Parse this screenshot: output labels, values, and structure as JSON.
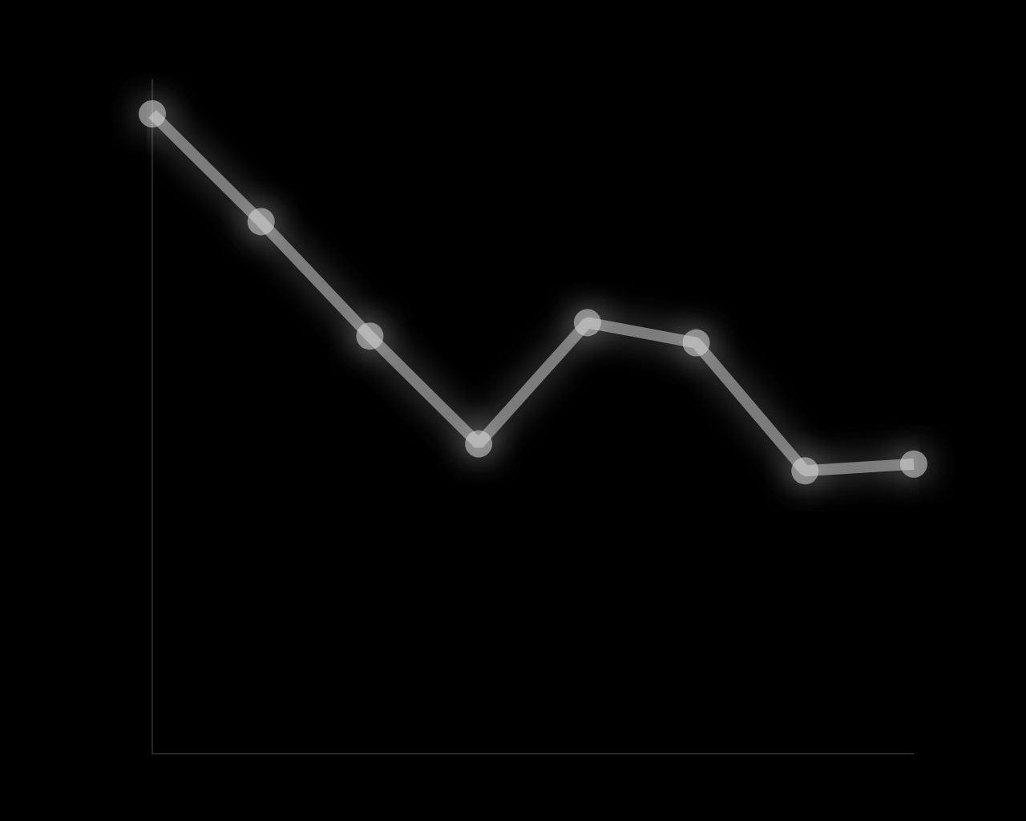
{
  "chart_data": {
    "type": "line",
    "categories": [
      null,
      null,
      null,
      null,
      null,
      null,
      null,
      null
    ],
    "values": [
      95,
      79,
      62,
      46,
      64,
      61,
      42,
      43
    ],
    "color": "#d8d8d8",
    "ylim": [
      0,
      100
    ],
    "grid": false,
    "tick_labels": false
  }
}
